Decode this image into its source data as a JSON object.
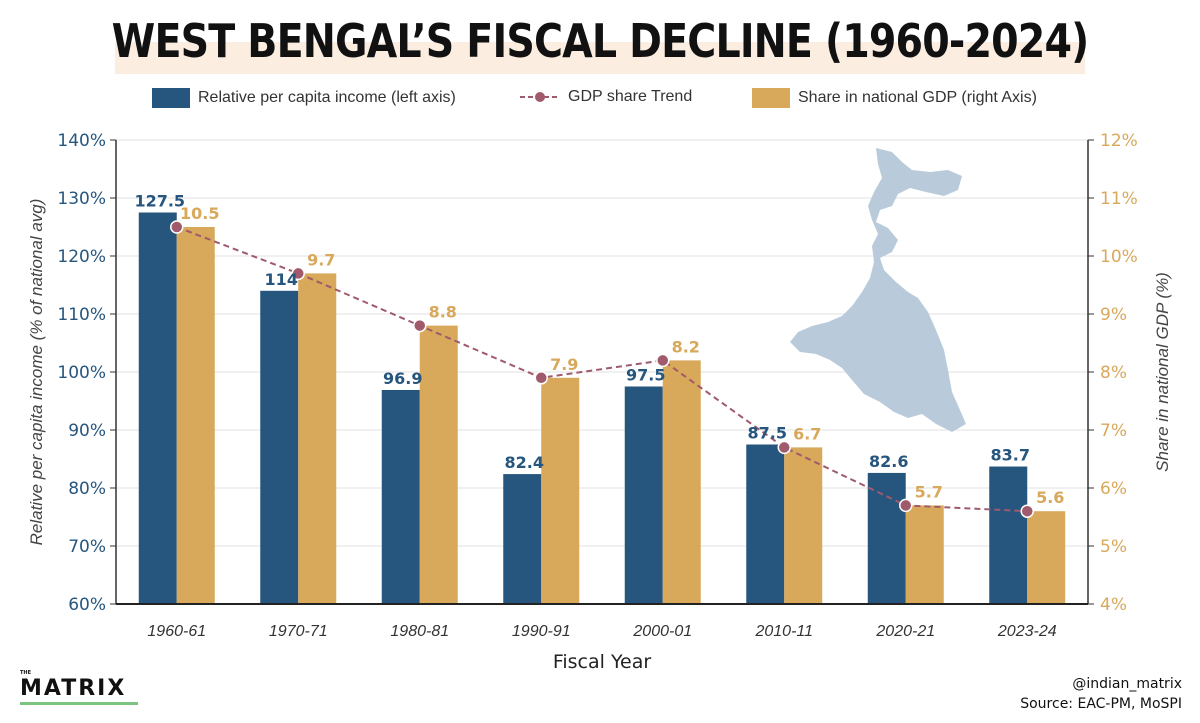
{
  "chart_data": {
    "type": "bar",
    "title": "WEST BENGAL’S FISCAL DECLINE (1960-2024)",
    "xlabel": "Fiscal Year",
    "ylabel_left": "Relative per capita income (% of national avg)",
    "ylabel_right": "Share in national GDP (%)",
    "categories": [
      "1960-61",
      "1970-71",
      "1980-81",
      "1990-91",
      "2000-01",
      "2010-11",
      "2020-21",
      "2023-24"
    ],
    "left_axis": {
      "min": 60,
      "max": 140,
      "ticks": [
        "60%",
        "70%",
        "80%",
        "90%",
        "100%",
        "110%",
        "120%",
        "130%",
        "140%"
      ]
    },
    "right_axis": {
      "min": 4,
      "max": 12,
      "ticks": [
        "4%",
        "5%",
        "6%",
        "7%",
        "8%",
        "9%",
        "10%",
        "11%",
        "12%"
      ]
    },
    "series": [
      {
        "name": "Relative per capita income (left axis)",
        "axis": "left",
        "color": "#26567e",
        "values": [
          127.5,
          114,
          96.9,
          82.4,
          97.5,
          87.5,
          82.6,
          83.7
        ],
        "labels": [
          "127.5",
          "114",
          "96.9",
          "82.4",
          "97.5",
          "87.5",
          "82.6",
          "83.7"
        ]
      },
      {
        "name": "Share in national GDP (right Axis)",
        "axis": "right",
        "color": "#d8a85b",
        "values": [
          10.5,
          9.7,
          8.8,
          7.9,
          8.2,
          6.7,
          5.7,
          5.6
        ],
        "labels": [
          "10.5",
          "9.7",
          "8.8",
          "7.9",
          "8.2",
          "6.7",
          "5.7",
          "5.6"
        ]
      },
      {
        "name": "GDP share Trend",
        "axis": "right",
        "type": "line",
        "color": "#a05a6c",
        "values": [
          10.5,
          9.7,
          8.8,
          7.9,
          8.2,
          6.7,
          5.7,
          5.6
        ]
      }
    ]
  },
  "footer": {
    "brand": "MATRIX",
    "brand_prefix": "THE",
    "handle": "@indian_matrix",
    "source": "Source: EAC-PM, MoSPI"
  },
  "colors": {
    "left_axis_text": "#26567e",
    "right_axis_text": "#d8a85b",
    "map_fill": "#b9cbdb"
  }
}
